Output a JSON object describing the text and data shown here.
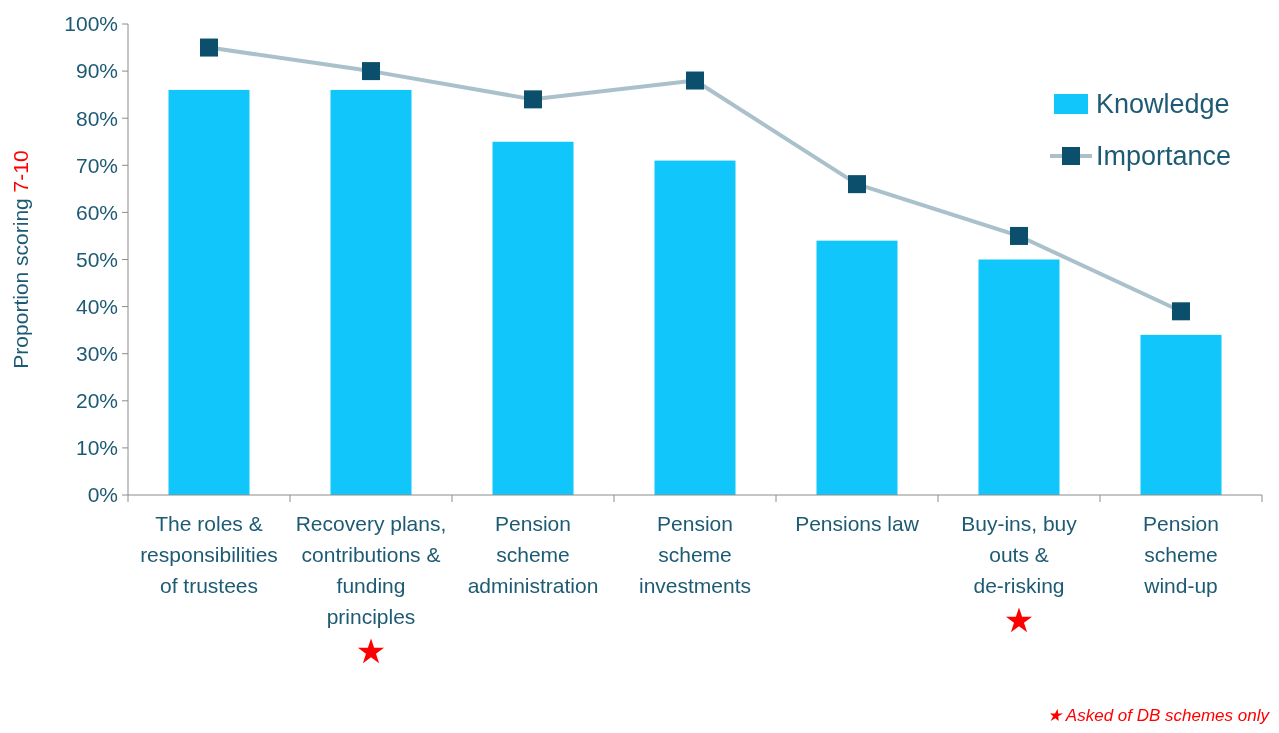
{
  "chart_data": {
    "type": "bar",
    "ylabel": "Proportion scoring 7-10",
    "categories": [
      "The roles & responsibilities of trustees",
      "Recovery plans, contributions & funding principles",
      "Pension scheme administration",
      "Pension scheme investments",
      "Pensions law",
      "Buy-ins, buy outs & de-risking",
      "Pension scheme wind-up"
    ],
    "series": [
      {
        "name": "Knowledge",
        "color": "#10c6fa",
        "values": [
          86,
          86,
          75,
          71,
          54,
          50,
          34
        ]
      },
      {
        "name": "Importance",
        "type": "line",
        "color": "#0b4f6c",
        "marker": "square",
        "values": [
          95,
          90,
          84,
          88,
          66,
          55,
          39
        ]
      }
    ],
    "ylim": [
      0,
      100
    ],
    "yticks": [
      {
        "value": 0,
        "label": "0%"
      },
      {
        "value": 10,
        "label": "10%"
      },
      {
        "value": 20,
        "label": "20%"
      },
      {
        "value": 30,
        "label": "30%"
      },
      {
        "value": 40,
        "label": "40%"
      },
      {
        "value": 50,
        "label": "50%"
      },
      {
        "value": 60,
        "label": "60%"
      },
      {
        "value": 70,
        "label": "70%"
      },
      {
        "value": 80,
        "label": "80%"
      },
      {
        "value": 90,
        "label": "90%"
      },
      {
        "value": 100,
        "label": "100%"
      }
    ],
    "grid": false,
    "legend": "top right",
    "annotations": [
      "★",
      "★",
      "★ Asked of DB schemes only"
    ]
  }
}
